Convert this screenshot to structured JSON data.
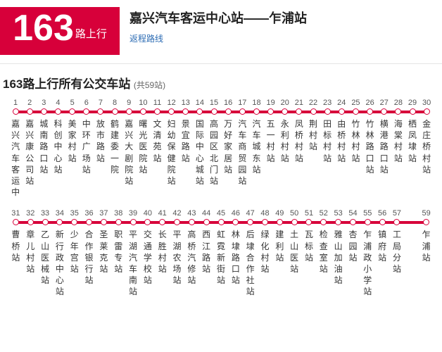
{
  "header": {
    "route_number": "163",
    "route_suffix": "路上行",
    "title": "嘉兴汽车客运中心站——乍浦站",
    "return_link_label": "返程路线"
  },
  "section": {
    "title": "163路上行所有公交车站",
    "count_label": "(共59站)"
  },
  "colors": {
    "brand": "#d7003a",
    "link": "#2b6bb3"
  },
  "rows": [
    {
      "start": 1,
      "stops": [
        "嘉兴汽车客运中",
        "嘉兴康公司站",
        "城南路口站",
        "科创中心站",
        "美家村站",
        "中环广场站",
        "放市路站",
        "鹤建委一院",
        "嘉兴大剧院站",
        "曙光医院站",
        "文清苑站",
        "妇幼保健院站",
        "景宜路站",
        "国际中心城站",
        "高园区北门站",
        "万好家居站",
        "汽车商贸园站",
        "汽车城东站",
        "五一村站",
        "永利村站",
        "凤桥村站",
        "荆村站",
        "田标村站",
        "由桥村站",
        "竹林村站",
        "竹林路口站",
        "横港路口站",
        "海棠村站",
        "栖凤埭站",
        "金庄桥村站"
      ]
    },
    {
      "start": 31,
      "stops": [
        "曹桥站",
        "章儿村站",
        "乙山医械站",
        "新行政中心站",
        "少年宫站",
        "合作银行站",
        "圣莱克站",
        "职雷专站",
        "平湖汽车南站",
        "交通学校站",
        "长胜村站",
        "平湖农场站",
        "高桥汽修站",
        "西江路站",
        "虹霓新街站",
        "林埭路口站",
        "后埭合作社站",
        "绿化村站",
        "建利站",
        "土山医站",
        "瓦标站",
        "检查室站",
        "雅山加油站",
        "杏园站",
        "乍浦政小学站",
        "镇府站",
        "工局分站",
        "",
        "乍浦站"
      ]
    }
  ]
}
